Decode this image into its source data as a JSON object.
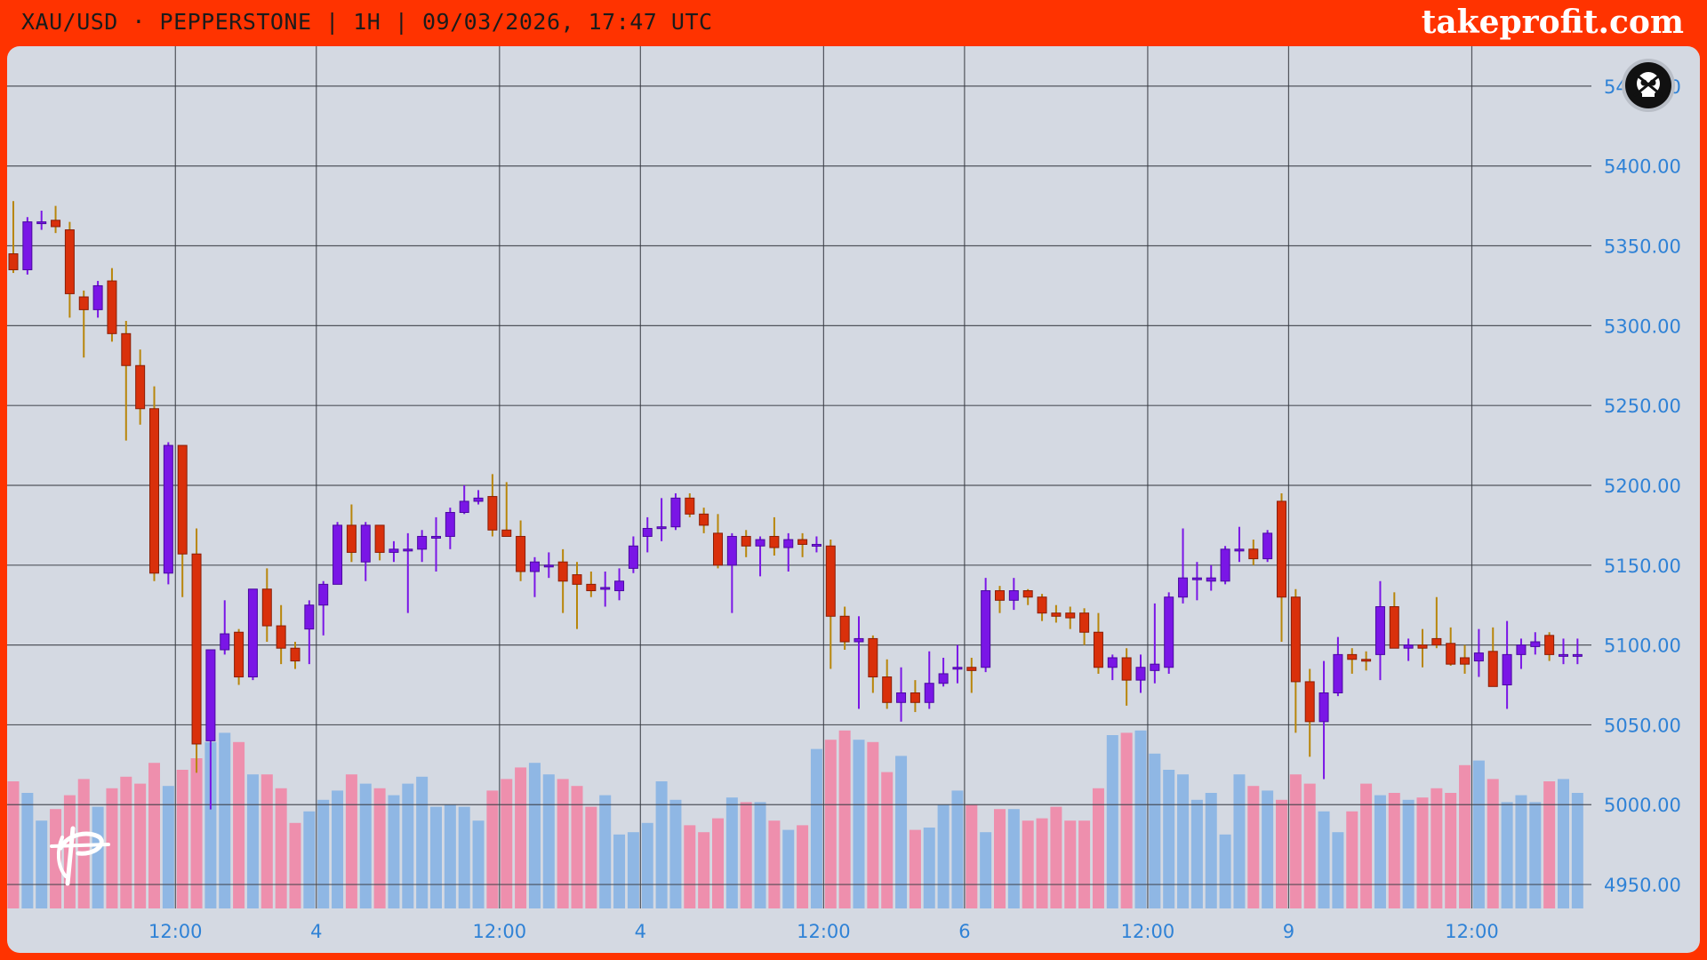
{
  "header": {
    "title": "XAU/USD · PEPPERSTONE | 1H | 09/03/2026, 17:47 UTC",
    "brand": "takeprofit.com"
  },
  "colors": {
    "background": "#ff3300",
    "plot": "#d4d9e2",
    "up_candle": "#7a16e6",
    "down_candle": "#d9300b",
    "wick": "#b8860b",
    "volume_up": "#8fb7e4",
    "volume_down": "#ee8fad",
    "axis_text": "#2f82d6",
    "grid": "#3a3d45"
  },
  "icons": {
    "indicator": "skull-badge-icon",
    "logo": "takeprofit-logo-icon"
  },
  "chart_data": {
    "type": "candlestick",
    "title": "XAU/USD · PEPPERSTONE | 1H | 09/03/2026, 17:47 UTC",
    "ylim": [
      4935,
      5475
    ],
    "y_ticks": [
      "5450.00",
      "5400.00",
      "5350.00",
      "5300.00",
      "5250.00",
      "5200.00",
      "5150.00",
      "5100.00",
      "5050.00",
      "5000.00",
      "4950.00"
    ],
    "x_ticks": [
      "12:00",
      "4",
      "12:00",
      "4",
      "12:00",
      "6",
      "12:00",
      "9",
      "12:00"
    ],
    "x_tick_bar_index": [
      11.5,
      21.5,
      34.5,
      44.5,
      57.5,
      67.5,
      80.5,
      90.5,
      103.5
    ],
    "grid": true,
    "n_bars": 112,
    "candles_ohlc": [
      [
        5345,
        5378,
        5333,
        5335
      ],
      [
        5335,
        5368,
        5332,
        5365
      ],
      [
        5365,
        5372,
        5360,
        5365
      ],
      [
        5366,
        5375,
        5358,
        5362
      ],
      [
        5360,
        5365,
        5305,
        5320
      ],
      [
        5318,
        5322,
        5280,
        5310
      ],
      [
        5310,
        5328,
        5305,
        5325
      ],
      [
        5328,
        5336,
        5290,
        5295
      ],
      [
        5295,
        5303,
        5228,
        5275
      ],
      [
        5275,
        5285,
        5238,
        5248
      ],
      [
        5248,
        5262,
        5140,
        5145
      ],
      [
        5145,
        5227,
        5138,
        5225
      ],
      [
        5225,
        5225,
        5130,
        5157
      ],
      [
        5157,
        5173,
        5020,
        5038
      ],
      [
        5040,
        5097,
        4997,
        5097
      ],
      [
        5097,
        5128,
        5094,
        5107
      ],
      [
        5108,
        5110,
        5075,
        5080
      ],
      [
        5080,
        5135,
        5078,
        5135
      ],
      [
        5135,
        5148,
        5102,
        5112
      ],
      [
        5112,
        5125,
        5088,
        5098
      ],
      [
        5098,
        5102,
        5085,
        5090
      ],
      [
        5110,
        5128,
        5088,
        5125
      ],
      [
        5125,
        5140,
        5106,
        5138
      ],
      [
        5138,
        5177,
        5138,
        5175
      ],
      [
        5175,
        5188,
        5152,
        5158
      ],
      [
        5152,
        5177,
        5140,
        5175
      ],
      [
        5175,
        5175,
        5153,
        5158
      ],
      [
        5158,
        5165,
        5152,
        5160
      ],
      [
        5160,
        5170,
        5120,
        5160
      ],
      [
        5160,
        5172,
        5152,
        5168
      ],
      [
        5168,
        5180,
        5146,
        5168
      ],
      [
        5168,
        5186,
        5160,
        5183
      ],
      [
        5183,
        5200,
        5182,
        5190
      ],
      [
        5190,
        5197,
        5188,
        5192
      ],
      [
        5193,
        5207,
        5168,
        5172
      ],
      [
        5172,
        5202,
        5168,
        5168
      ],
      [
        5168,
        5178,
        5140,
        5146
      ],
      [
        5146,
        5155,
        5130,
        5152
      ],
      [
        5150,
        5158,
        5142,
        5150
      ],
      [
        5152,
        5160,
        5120,
        5140
      ],
      [
        5144,
        5152,
        5110,
        5138
      ],
      [
        5138,
        5146,
        5130,
        5134
      ],
      [
        5135,
        5146,
        5124,
        5136
      ],
      [
        5134,
        5148,
        5128,
        5140
      ],
      [
        5148,
        5168,
        5145,
        5162
      ],
      [
        5168,
        5180,
        5158,
        5173
      ],
      [
        5173,
        5192,
        5165,
        5174
      ],
      [
        5174,
        5195,
        5172,
        5192
      ],
      [
        5192,
        5195,
        5180,
        5182
      ],
      [
        5182,
        5186,
        5170,
        5175
      ],
      [
        5170,
        5182,
        5148,
        5150
      ],
      [
        5150,
        5170,
        5120,
        5168
      ],
      [
        5168,
        5172,
        5155,
        5162
      ],
      [
        5162,
        5168,
        5143,
        5166
      ],
      [
        5168,
        5180,
        5156,
        5161
      ],
      [
        5161,
        5170,
        5146,
        5166
      ],
      [
        5166,
        5170,
        5155,
        5163
      ],
      [
        5163,
        5168,
        5158,
        5163
      ],
      [
        5162,
        5166,
        5085,
        5118
      ],
      [
        5118,
        5124,
        5097,
        5102
      ],
      [
        5102,
        5118,
        5060,
        5104
      ],
      [
        5104,
        5106,
        5070,
        5080
      ],
      [
        5080,
        5091,
        5060,
        5064
      ],
      [
        5064,
        5086,
        5052,
        5070
      ],
      [
        5070,
        5078,
        5058,
        5064
      ],
      [
        5064,
        5096,
        5060,
        5076
      ],
      [
        5076,
        5092,
        5074,
        5082
      ],
      [
        5085,
        5100,
        5076,
        5086
      ],
      [
        5086,
        5092,
        5070,
        5084
      ],
      [
        5086,
        5142,
        5083,
        5134
      ],
      [
        5134,
        5137,
        5120,
        5128
      ],
      [
        5128,
        5142,
        5122,
        5134
      ],
      [
        5134,
        5135,
        5125,
        5130
      ],
      [
        5130,
        5132,
        5115,
        5120
      ],
      [
        5120,
        5125,
        5114,
        5118
      ],
      [
        5120,
        5124,
        5110,
        5117
      ],
      [
        5120,
        5123,
        5100,
        5108
      ],
      [
        5108,
        5120,
        5082,
        5086
      ],
      [
        5086,
        5094,
        5078,
        5092
      ],
      [
        5092,
        5098,
        5062,
        5078
      ],
      [
        5078,
        5094,
        5070,
        5086
      ],
      [
        5084,
        5126,
        5076,
        5088
      ],
      [
        5086,
        5133,
        5082,
        5130
      ],
      [
        5130,
        5173,
        5126,
        5142
      ],
      [
        5142,
        5152,
        5128,
        5142
      ],
      [
        5140,
        5150,
        5134,
        5142
      ],
      [
        5140,
        5162,
        5138,
        5160
      ],
      [
        5160,
        5174,
        5152,
        5160
      ],
      [
        5160,
        5166,
        5150,
        5154
      ],
      [
        5154,
        5172,
        5152,
        5170
      ],
      [
        5190,
        5195,
        5102,
        5130
      ],
      [
        5130,
        5135,
        5045,
        5077
      ],
      [
        5077,
        5085,
        5030,
        5052
      ],
      [
        5052,
        5090,
        5016,
        5070
      ],
      [
        5070,
        5105,
        5068,
        5094
      ],
      [
        5094,
        5098,
        5082,
        5091
      ],
      [
        5091,
        5096,
        5084,
        5090
      ],
      [
        5094,
        5140,
        5078,
        5124
      ],
      [
        5124,
        5133,
        5098,
        5098
      ],
      [
        5098,
        5104,
        5090,
        5100
      ],
      [
        5100,
        5110,
        5086,
        5098
      ],
      [
        5104,
        5130,
        5098,
        5100
      ],
      [
        5101,
        5111,
        5087,
        5088
      ],
      [
        5092,
        5100,
        5082,
        5088
      ],
      [
        5090,
        5110,
        5080,
        5095
      ],
      [
        5096,
        5111,
        5078,
        5074
      ],
      [
        5075,
        5115,
        5060,
        5094
      ],
      [
        5094,
        5104,
        5085,
        5100
      ],
      [
        5099,
        5108,
        5094,
        5102
      ],
      [
        5106,
        5108,
        5090,
        5094
      ],
      [
        5094,
        5104,
        5088,
        5094
      ],
      [
        5094,
        5104,
        5088,
        5094
      ]
    ],
    "volume_relative": [
      0.55,
      0.5,
      0.38,
      0.43,
      0.49,
      0.56,
      0.44,
      0.52,
      0.57,
      0.54,
      0.63,
      0.53,
      0.6,
      0.65,
      0.72,
      0.76,
      0.72,
      0.58,
      0.58,
      0.52,
      0.37,
      0.42,
      0.47,
      0.51,
      0.58,
      0.54,
      0.52,
      0.49,
      0.54,
      0.57,
      0.44,
      0.45,
      0.44,
      0.38,
      0.51,
      0.56,
      0.61,
      0.63,
      0.58,
      0.56,
      0.53,
      0.44,
      0.49,
      0.32,
      0.33,
      0.37,
      0.55,
      0.47,
      0.36,
      0.33,
      0.39,
      0.48,
      0.46,
      0.46,
      0.38,
      0.34,
      0.36,
      0.69,
      0.73,
      0.77,
      0.73,
      0.72,
      0.59,
      0.66,
      0.34,
      0.35,
      0.45,
      0.51,
      0.45,
      0.33,
      0.43,
      0.43,
      0.38,
      0.39,
      0.44,
      0.38,
      0.38,
      0.52,
      0.75,
      0.76,
      0.77,
      0.67,
      0.6,
      0.58,
      0.47,
      0.5,
      0.32,
      0.58,
      0.53,
      0.51,
      0.47,
      0.58,
      0.54,
      0.42,
      0.33,
      0.42,
      0.54,
      0.49,
      0.5,
      0.47,
      0.48,
      0.52,
      0.5,
      0.62,
      0.64,
      0.56,
      0.46,
      0.49,
      0.46,
      0.55,
      0.56,
      0.5
    ]
  }
}
